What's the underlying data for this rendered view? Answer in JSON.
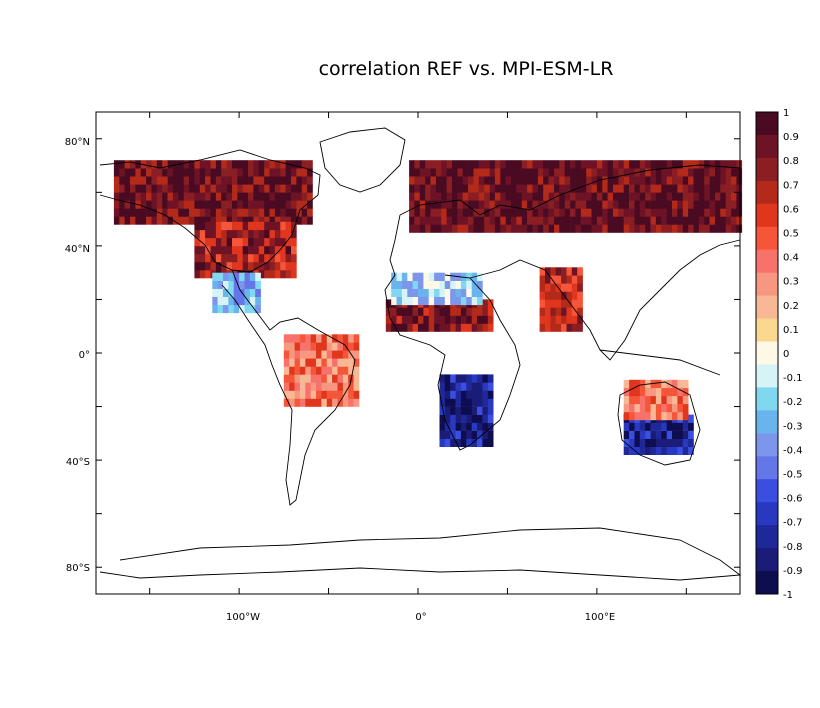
{
  "title": "correlation REF vs. MPI-ESM-LR",
  "axes": {
    "lat_labels": [
      "80°N",
      "40°N",
      "0°",
      "40°S",
      "80°S"
    ],
    "lon_labels": [
      "100°W",
      "0°",
      "100°E"
    ]
  },
  "colorbar": {
    "labels": [
      "1",
      "0.9",
      "0.8",
      "0.7",
      "0.6",
      "0.5",
      "0.4",
      "0.3",
      "0.2",
      "0.1",
      "0",
      "-0.1",
      "-0.2",
      "-0.3",
      "-0.4",
      "-0.5",
      "-0.6",
      "-0.7",
      "-0.8",
      "-0.9",
      "-1"
    ],
    "colors": [
      "#4a0a22",
      "#6e1326",
      "#8a1e22",
      "#b32a1a",
      "#e0361e",
      "#f55538",
      "#f7726a",
      "#f7977f",
      "#f8b896",
      "#fbd88f",
      "#fdf9e6",
      "#d6f4f7",
      "#7fd8f0",
      "#6ab4ee",
      "#7c96ec",
      "#6476e8",
      "#3a4fe0",
      "#2838c0",
      "#1f2898",
      "#1a1c78",
      "#0d0d50"
    ]
  },
  "map_data": {
    "lon_range": [
      -180,
      180
    ],
    "lat_range": [
      -90,
      90
    ],
    "grid_cell_deg": 3,
    "regions": [
      {
        "name": "northern-eurasia",
        "lon": [
          -5,
          180
        ],
        "lat": [
          45,
          72
        ],
        "value": 0.95
      },
      {
        "name": "northern-north-america",
        "lon": [
          -170,
          -60
        ],
        "lat": [
          48,
          72
        ],
        "value": 0.9
      },
      {
        "name": "usa",
        "lon": [
          -125,
          -70
        ],
        "lat": [
          28,
          48
        ],
        "value": 0.75
      },
      {
        "name": "mexico",
        "lon": [
          -115,
          -90
        ],
        "lat": [
          15,
          28
        ],
        "value": -0.3
      },
      {
        "name": "sahel",
        "lon": [
          -18,
          40
        ],
        "lat": [
          8,
          18
        ],
        "value": 0.85
      },
      {
        "name": "sahara",
        "lon": [
          -15,
          35
        ],
        "lat": [
          18,
          30
        ],
        "value": -0.2
      },
      {
        "name": "southern-africa",
        "lon": [
          12,
          40
        ],
        "lat": [
          -35,
          -8
        ],
        "value": -0.85
      },
      {
        "name": "india",
        "lon": [
          68,
          90
        ],
        "lat": [
          8,
          30
        ],
        "value": 0.7
      },
      {
        "name": "australia-south",
        "lon": [
          115,
          153
        ],
        "lat": [
          -38,
          -25
        ],
        "value": -0.8
      },
      {
        "name": "australia-north",
        "lon": [
          115,
          150
        ],
        "lat": [
          -25,
          -12
        ],
        "value": 0.4
      },
      {
        "name": "amazon",
        "lon": [
          -75,
          -35
        ],
        "lat": [
          -20,
          5
        ],
        "value": 0.4
      }
    ]
  }
}
